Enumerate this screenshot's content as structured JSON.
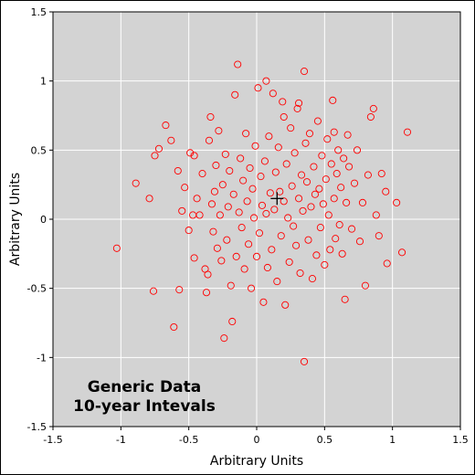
{
  "chart_data": {
    "type": "scatter",
    "xlabel": "Arbitrary Units",
    "ylabel": "Arbitrary Units",
    "xlim": [
      -1.5,
      1.5
    ],
    "ylim": [
      -1.5,
      1.5
    ],
    "xticks": [
      "-1.5",
      "-1",
      "-0.5",
      "0",
      "0.5",
      "1",
      "1.5"
    ],
    "yticks": [
      "-1.5",
      "-1",
      "-0.5",
      "0",
      "0.5",
      "1",
      "1.5"
    ],
    "grid": true,
    "annotation": [
      "Generic Data",
      "10-year Intevals"
    ],
    "annotation_position": "bottom-left",
    "marker_color": "#ff0000",
    "plot_background": "#d3d3d3",
    "center_marker": [
      0.15,
      0.15
    ],
    "points": [
      [
        -1.03,
        -0.21
      ],
      [
        -0.89,
        0.26
      ],
      [
        -0.79,
        0.15
      ],
      [
        -0.76,
        -0.52
      ],
      [
        -0.75,
        0.46
      ],
      [
        -0.72,
        0.51
      ],
      [
        -0.67,
        0.68
      ],
      [
        -0.63,
        0.57
      ],
      [
        -0.61,
        -0.78
      ],
      [
        -0.58,
        0.35
      ],
      [
        -0.57,
        -0.51
      ],
      [
        -0.55,
        0.06
      ],
      [
        -0.53,
        0.23
      ],
      [
        -0.5,
        -0.08
      ],
      [
        -0.49,
        0.48
      ],
      [
        -0.47,
        0.03
      ],
      [
        -0.46,
        -0.28
      ],
      [
        -0.46,
        0.46
      ],
      [
        -0.44,
        0.15
      ],
      [
        -0.42,
        0.03
      ],
      [
        -0.4,
        0.33
      ],
      [
        -0.38,
        -0.36
      ],
      [
        -0.37,
        -0.53
      ],
      [
        -0.36,
        -0.4
      ],
      [
        -0.35,
        0.57
      ],
      [
        -0.34,
        0.74
      ],
      [
        -0.33,
        0.11
      ],
      [
        -0.32,
        -0.09
      ],
      [
        -0.31,
        0.2
      ],
      [
        -0.3,
        0.39
      ],
      [
        -0.29,
        -0.21
      ],
      [
        -0.28,
        0.64
      ],
      [
        -0.27,
        0.03
      ],
      [
        -0.26,
        -0.3
      ],
      [
        -0.25,
        0.25
      ],
      [
        -0.24,
        -0.86
      ],
      [
        -0.23,
        0.47
      ],
      [
        -0.22,
        -0.15
      ],
      [
        -0.21,
        0.09
      ],
      [
        -0.2,
        0.35
      ],
      [
        -0.19,
        -0.48
      ],
      [
        -0.18,
        -0.74
      ],
      [
        -0.17,
        0.18
      ],
      [
        -0.16,
        0.9
      ],
      [
        -0.15,
        -0.27
      ],
      [
        -0.14,
        1.12
      ],
      [
        -0.13,
        0.05
      ],
      [
        -0.12,
        0.44
      ],
      [
        -0.11,
        -0.06
      ],
      [
        -0.1,
        0.28
      ],
      [
        -0.09,
        -0.36
      ],
      [
        -0.08,
        0.62
      ],
      [
        -0.07,
        0.13
      ],
      [
        -0.06,
        -0.18
      ],
      [
        -0.05,
        0.37
      ],
      [
        -0.04,
        -0.5
      ],
      [
        -0.03,
        0.22
      ],
      [
        -0.02,
        0.01
      ],
      [
        -0.01,
        0.53
      ],
      [
        0.0,
        -0.27
      ],
      [
        0.01,
        0.95
      ],
      [
        0.02,
        -0.1
      ],
      [
        0.03,
        0.31
      ],
      [
        0.04,
        0.1
      ],
      [
        0.05,
        -0.6
      ],
      [
        0.06,
        0.42
      ],
      [
        0.07,
        0.04
      ],
      [
        0.08,
        -0.35
      ],
      [
        0.09,
        0.6
      ],
      [
        0.1,
        0.19
      ],
      [
        0.11,
        -0.22
      ],
      [
        0.12,
        0.91
      ],
      [
        0.13,
        0.07
      ],
      [
        0.14,
        0.34
      ],
      [
        0.15,
        -0.45
      ],
      [
        0.16,
        0.52
      ],
      [
        0.17,
        0.2
      ],
      [
        0.18,
        -0.12
      ],
      [
        0.19,
        0.85
      ],
      [
        0.2,
        0.13
      ],
      [
        0.21,
        -0.62
      ],
      [
        0.22,
        0.4
      ],
      [
        0.23,
        0.01
      ],
      [
        0.24,
        -0.31
      ],
      [
        0.25,
        0.66
      ],
      [
        0.26,
        0.24
      ],
      [
        0.27,
        -0.05
      ],
      [
        0.28,
        0.48
      ],
      [
        0.29,
        -0.19
      ],
      [
        0.3,
        0.8
      ],
      [
        0.31,
        0.15
      ],
      [
        0.32,
        -0.39
      ],
      [
        0.33,
        0.32
      ],
      [
        0.34,
        0.06
      ],
      [
        0.35,
        -1.03
      ],
      [
        0.36,
        0.55
      ],
      [
        0.37,
        0.27
      ],
      [
        0.38,
        -0.15
      ],
      [
        0.39,
        0.62
      ],
      [
        0.4,
        0.09
      ],
      [
        0.41,
        -0.43
      ],
      [
        0.42,
        0.38
      ],
      [
        0.43,
        0.18
      ],
      [
        0.44,
        -0.26
      ],
      [
        0.45,
        0.71
      ],
      [
        0.46,
        0.22
      ],
      [
        0.47,
        -0.06
      ],
      [
        0.48,
        0.46
      ],
      [
        0.49,
        0.11
      ],
      [
        0.5,
        -0.33
      ],
      [
        0.51,
        0.29
      ],
      [
        0.52,
        0.58
      ],
      [
        0.53,
        0.03
      ],
      [
        0.54,
        -0.22
      ],
      [
        0.55,
        0.4
      ],
      [
        0.56,
        0.86
      ],
      [
        0.57,
        0.15
      ],
      [
        0.58,
        -0.14
      ],
      [
        0.59,
        0.33
      ],
      [
        0.6,
        0.5
      ],
      [
        0.61,
        -0.04
      ],
      [
        0.62,
        0.23
      ],
      [
        0.63,
        -0.25
      ],
      [
        0.64,
        0.44
      ],
      [
        0.65,
        -0.58
      ],
      [
        0.66,
        0.12
      ],
      [
        0.67,
        0.61
      ],
      [
        0.68,
        0.38
      ],
      [
        0.7,
        -0.07
      ],
      [
        0.72,
        0.26
      ],
      [
        0.74,
        0.5
      ],
      [
        0.76,
        -0.16
      ],
      [
        0.78,
        0.12
      ],
      [
        0.8,
        -0.48
      ],
      [
        0.82,
        0.32
      ],
      [
        0.84,
        0.74
      ],
      [
        0.86,
        0.8
      ],
      [
        0.88,
        0.03
      ],
      [
        0.9,
        -0.12
      ],
      [
        0.92,
        0.33
      ],
      [
        0.95,
        0.2
      ],
      [
        0.96,
        -0.32
      ],
      [
        1.03,
        0.12
      ],
      [
        1.07,
        -0.24
      ],
      [
        1.11,
        0.63
      ],
      [
        0.35,
        1.07
      ],
      [
        0.07,
        1.0
      ],
      [
        0.57,
        0.63
      ],
      [
        0.31,
        0.84
      ],
      [
        0.2,
        0.74
      ]
    ]
  }
}
